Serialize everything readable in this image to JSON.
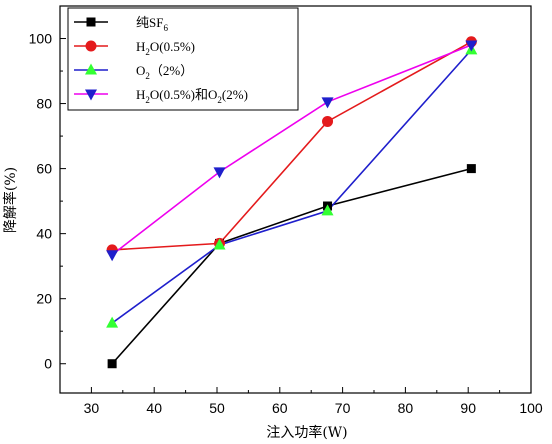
{
  "chart_data": {
    "type": "line",
    "xlabel": "注入功率(W)",
    "ylabel": "降解率(%)",
    "xlim": [
      25,
      100
    ],
    "ylim": [
      -9,
      110
    ],
    "xticks": [
      30,
      40,
      50,
      60,
      70,
      80,
      90,
      100
    ],
    "yticks": [
      0,
      20,
      40,
      60,
      80,
      100
    ],
    "x": [
      33.3,
      50.4,
      67.6,
      90.5
    ],
    "legend_position": "top-left",
    "series": [
      {
        "name_main": "纯SF",
        "name_sub": "6",
        "name_after": "",
        "values": [
          0,
          37,
          48.5,
          60
        ],
        "color": "#000000",
        "marker": "square"
      },
      {
        "name_main": "H",
        "name_sub": "2",
        "name_after": "O(0.5%)",
        "values": [
          35,
          37,
          74.5,
          99
        ],
        "color": "#e41a1c",
        "marker": "circle"
      },
      {
        "name_main": "O",
        "name_sub": "2",
        "name_after": "（2%）",
        "values": [
          12.5,
          36.5,
          47,
          96.5
        ],
        "color": "#1f1fcc",
        "marker": "triangle-up",
        "marker_color": "#33ff33"
      },
      {
        "name_main": "H",
        "name_sub": "2",
        "name_after": "O(0.5%)和O",
        "name_sub2": "2",
        "name_after2": "(2%)",
        "values": [
          33.5,
          59,
          80.5,
          98
        ],
        "color": "#ee00ee",
        "marker": "triangle-down",
        "marker_color": "#1f1fcc"
      }
    ]
  }
}
